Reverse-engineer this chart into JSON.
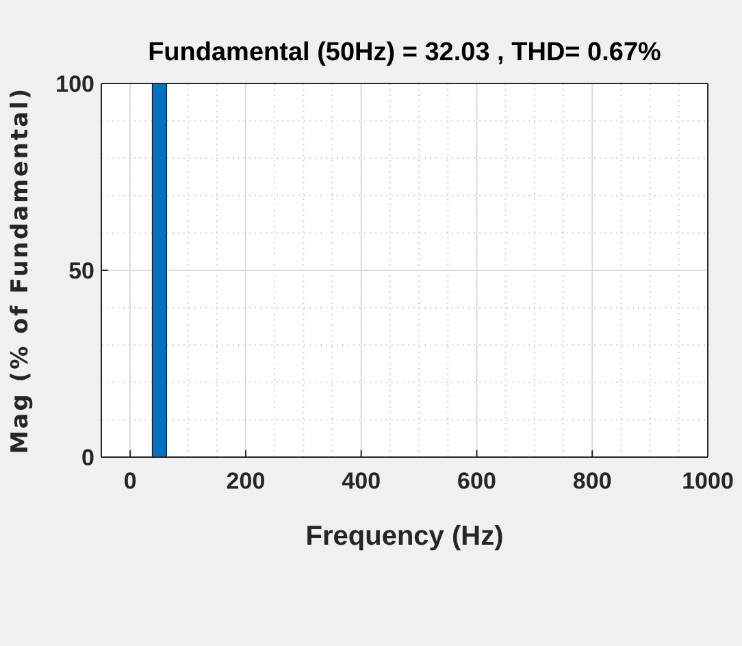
{
  "chart_data": {
    "type": "bar",
    "title": "Fundamental (50Hz) = 32.03 , THD= 0.67%",
    "xlabel": "Frequency (Hz)",
    "ylabel": "Mag (% of Fundamental)",
    "x": [
      50
    ],
    "values": [
      100
    ],
    "color": "#0072bd",
    "xlim": [
      -50,
      1000
    ],
    "xticks": [
      0,
      200,
      400,
      600,
      800,
      1000
    ],
    "ylim": [
      0,
      100
    ],
    "yticks": [
      0,
      50,
      100
    ],
    "grid": true
  }
}
